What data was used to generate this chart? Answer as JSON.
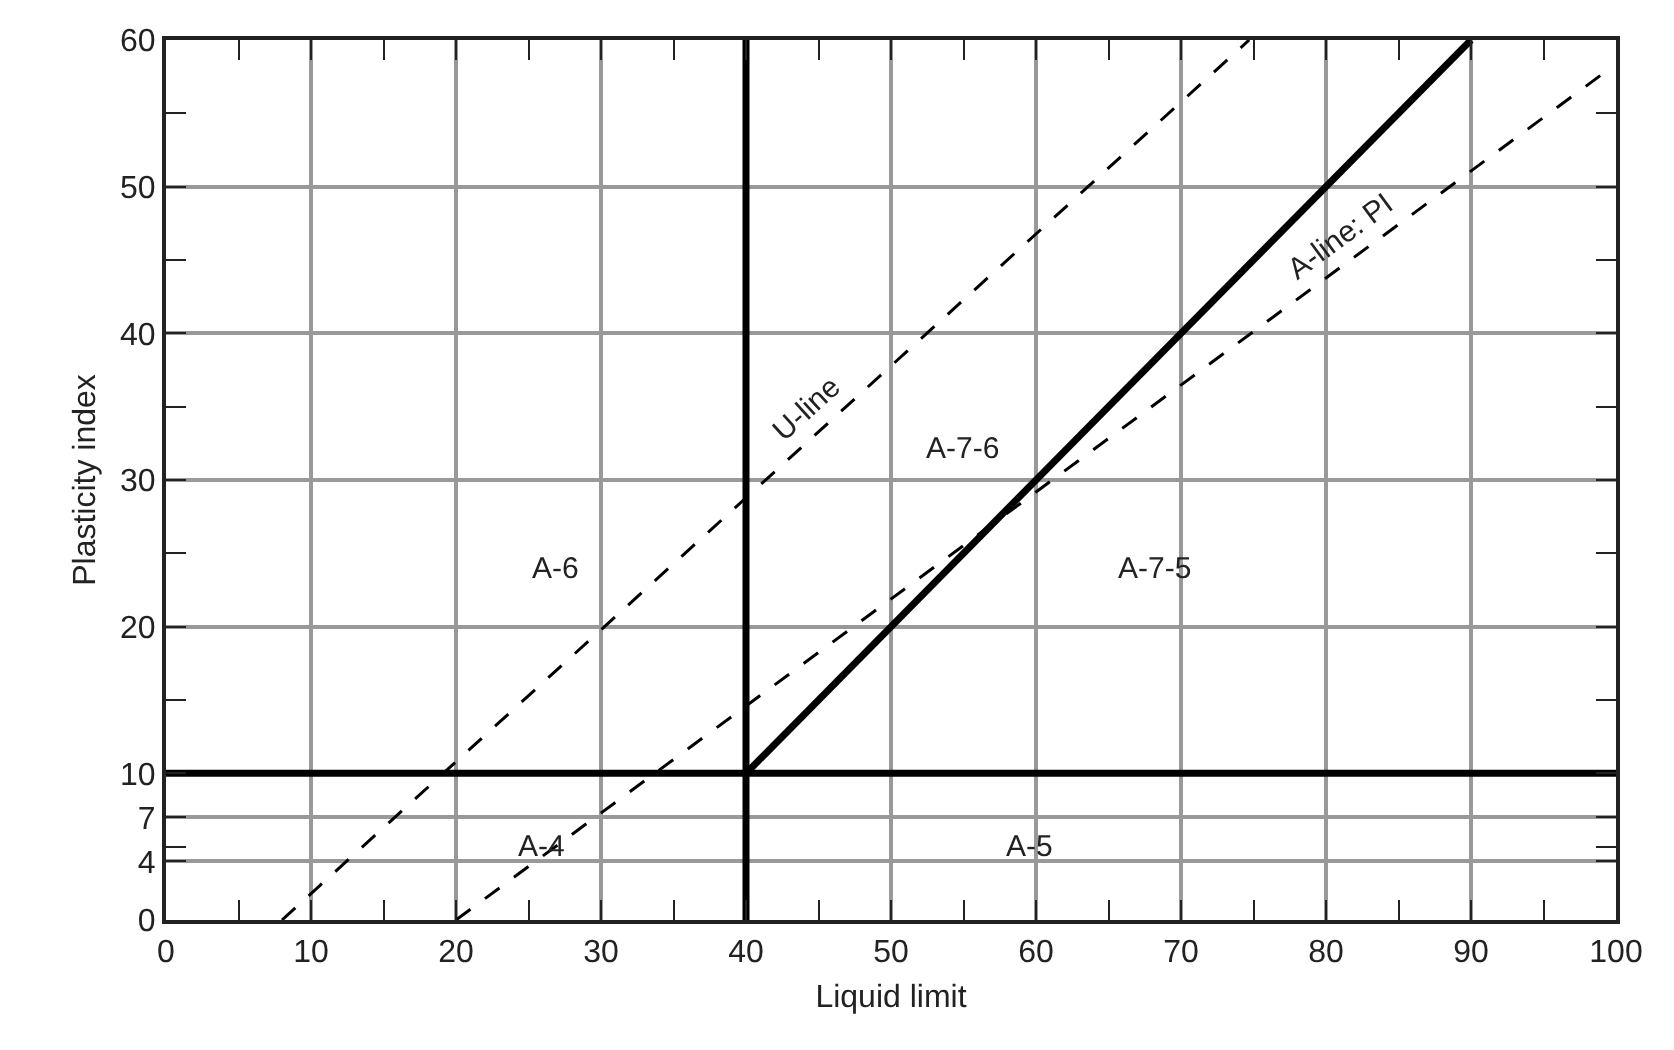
{
  "chart_data": {
    "type": "line",
    "xlabel": "Liquid limit",
    "ylabel": "Plasticity index",
    "xlim": [
      0,
      100
    ],
    "xticks": [
      0,
      10,
      20,
      30,
      40,
      50,
      60,
      70,
      80,
      90,
      100
    ],
    "ylim": [
      0,
      60
    ],
    "yticks": [
      0,
      4,
      7,
      10,
      20,
      30,
      40,
      50,
      60
    ],
    "grid": true,
    "marker": "none",
    "series": [
      {
        "name": "U-line",
        "color": "#000000",
        "line_style": "dashed",
        "x": [
          8,
          74.7
        ],
        "values": [
          0,
          60
        ]
      },
      {
        "name": "A-line: PI",
        "color": "#000000",
        "line_style": "dashed",
        "x": [
          20,
          99.5
        ],
        "values": [
          0,
          58
        ]
      },
      {
        "color": "#000000",
        "line_style": "solid",
        "x": [
          40,
          90
        ],
        "values": [
          10,
          60
        ]
      },
      {
        "color": "#000000",
        "line_style": "solid",
        "x": [
          40,
          40
        ],
        "values": [
          0,
          60
        ]
      },
      {
        "color": "#000000",
        "line_style": "solid",
        "x": [
          0,
          100
        ],
        "values": [
          10,
          10
        ]
      }
    ],
    "annotations": [
      "A-6",
      "A-4",
      "A-7-6",
      "A-7-5",
      "A-5"
    ]
  }
}
